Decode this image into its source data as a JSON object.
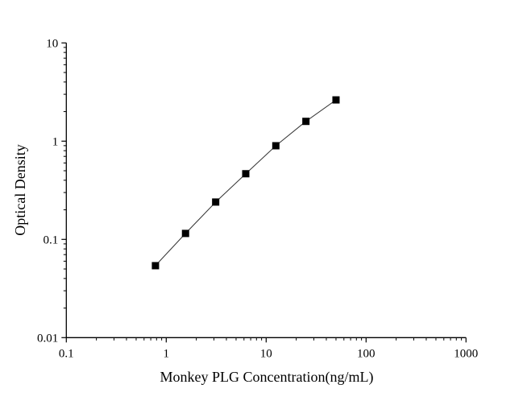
{
  "chart_data": {
    "type": "line",
    "title": "",
    "xlabel": "Monkey PLG Concentration(ng/mL)",
    "ylabel": "Optical Density",
    "x_scale": "log",
    "y_scale": "log",
    "xlim": [
      0.1,
      1000
    ],
    "ylim": [
      0.01,
      10
    ],
    "x_ticks": [
      "0.1",
      "1",
      "10",
      "100",
      "1000"
    ],
    "y_ticks": [
      "0.01",
      "0.1",
      "1",
      "10"
    ],
    "grid": false,
    "marker": "square",
    "color": "#000000",
    "series": [
      {
        "x": [
          0.78,
          1.56,
          3.125,
          6.25,
          12.5,
          25,
          50
        ],
        "y": [
          0.054,
          0.115,
          0.24,
          0.466,
          0.898,
          1.59,
          2.63
        ]
      }
    ]
  }
}
